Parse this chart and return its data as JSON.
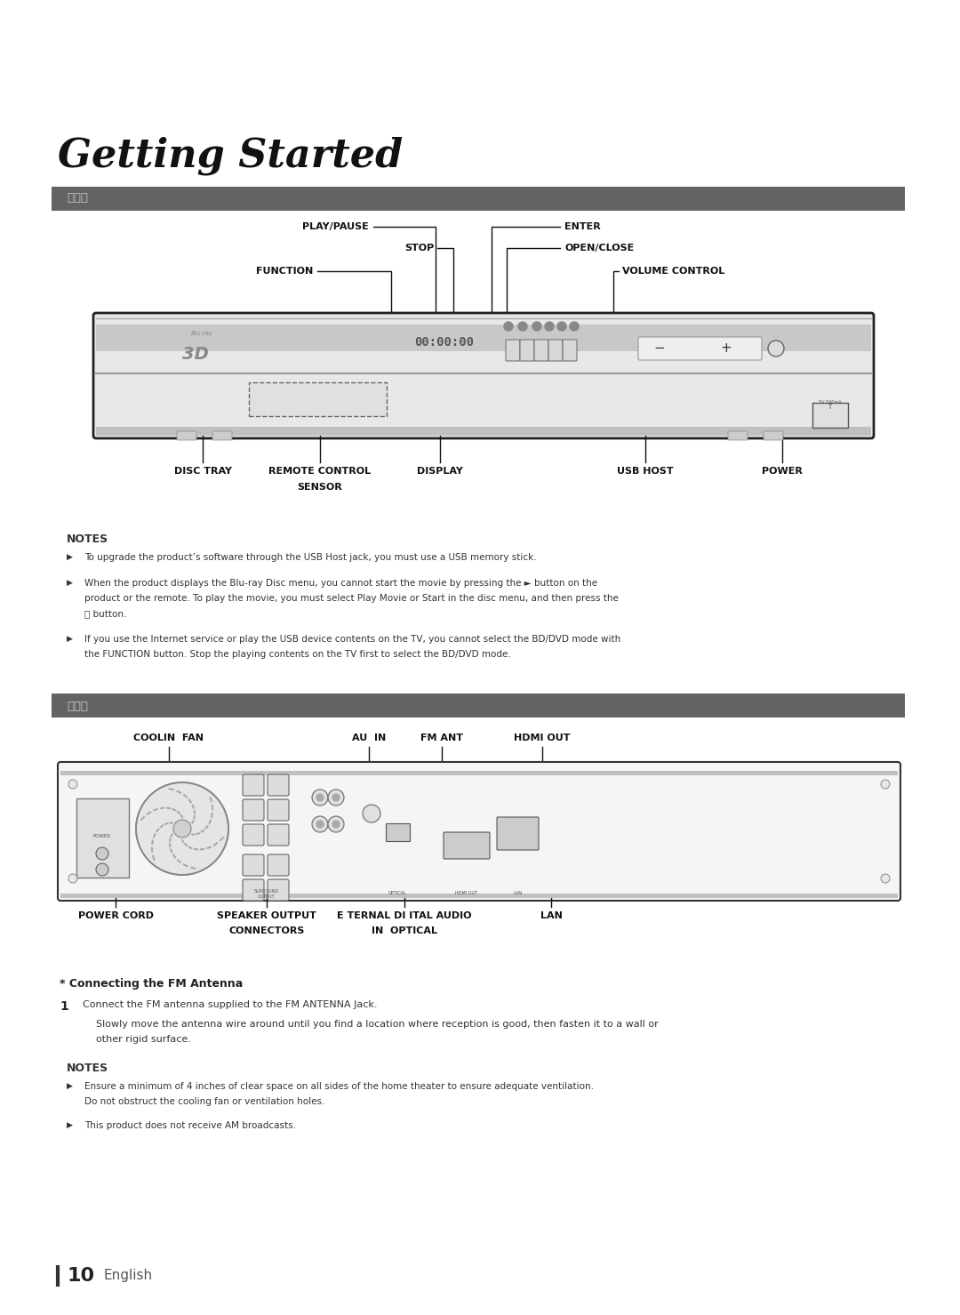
{
  "title": "Getting Started",
  "bg_color": "#ffffff",
  "section_bar_color": "#636363",
  "section_bar_text_color": "#c8c8c8",
  "page_number": "10",
  "page_label": "English",
  "notes1": [
    "To upgrade the product’s software through the USB Host jack, you must use a USB memory stick.",
    "When the product displays the Blu-ray Disc menu, you cannot start the movie by pressing the ► button on the product or the remote. To play the movie, you must select Play Movie or Start in the disc menu, and then press the ⓔ button.",
    "If you use the Internet service or play the USB device contents on the TV, you cannot select the BD/DVD mode with the FUNCTION button. Stop the playing contents on the TV first to select the BD/DVD mode."
  ],
  "notes2": [
    "Ensure a minimum of 4 inches of clear space on all sides of the home theater to ensure adequate ventilation. Do not obstruct the cooling fan or ventilation holes.",
    "This product does not receive AM broadcasts."
  ]
}
